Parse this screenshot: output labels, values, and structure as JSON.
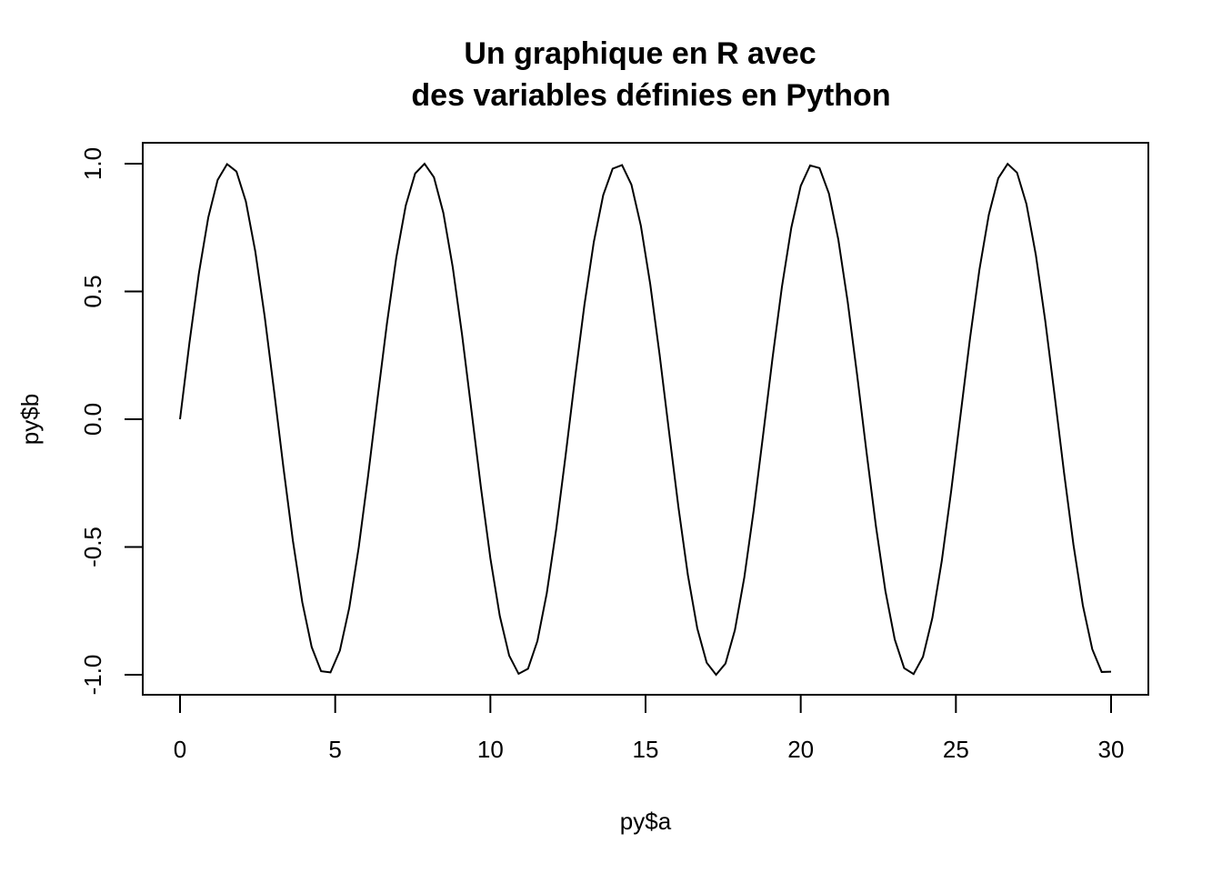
{
  "chart_data": {
    "type": "line",
    "title": [
      "Un graphique en R avec",
      "des variables définies en Python"
    ],
    "xlabel": "py$a",
    "ylabel": "py$b",
    "xlim": [
      0,
      30
    ],
    "ylim": [
      -1,
      1
    ],
    "xticks": [
      0,
      5,
      10,
      15,
      20,
      25,
      30
    ],
    "xtick_labels": [
      "0",
      "5",
      "10",
      "15",
      "20",
      "25",
      "30"
    ],
    "yticks": [
      -1,
      -0.5,
      0,
      0.5,
      1
    ],
    "ytick_labels": [
      "-1.0",
      "-0.5",
      "0.0",
      "0.5",
      "1.0"
    ],
    "grid": false,
    "legend": "none",
    "line_color": "#000000",
    "series": [
      {
        "function": "sin(x)",
        "x_start": 0,
        "x_end": 30,
        "points": 100
      }
    ]
  }
}
